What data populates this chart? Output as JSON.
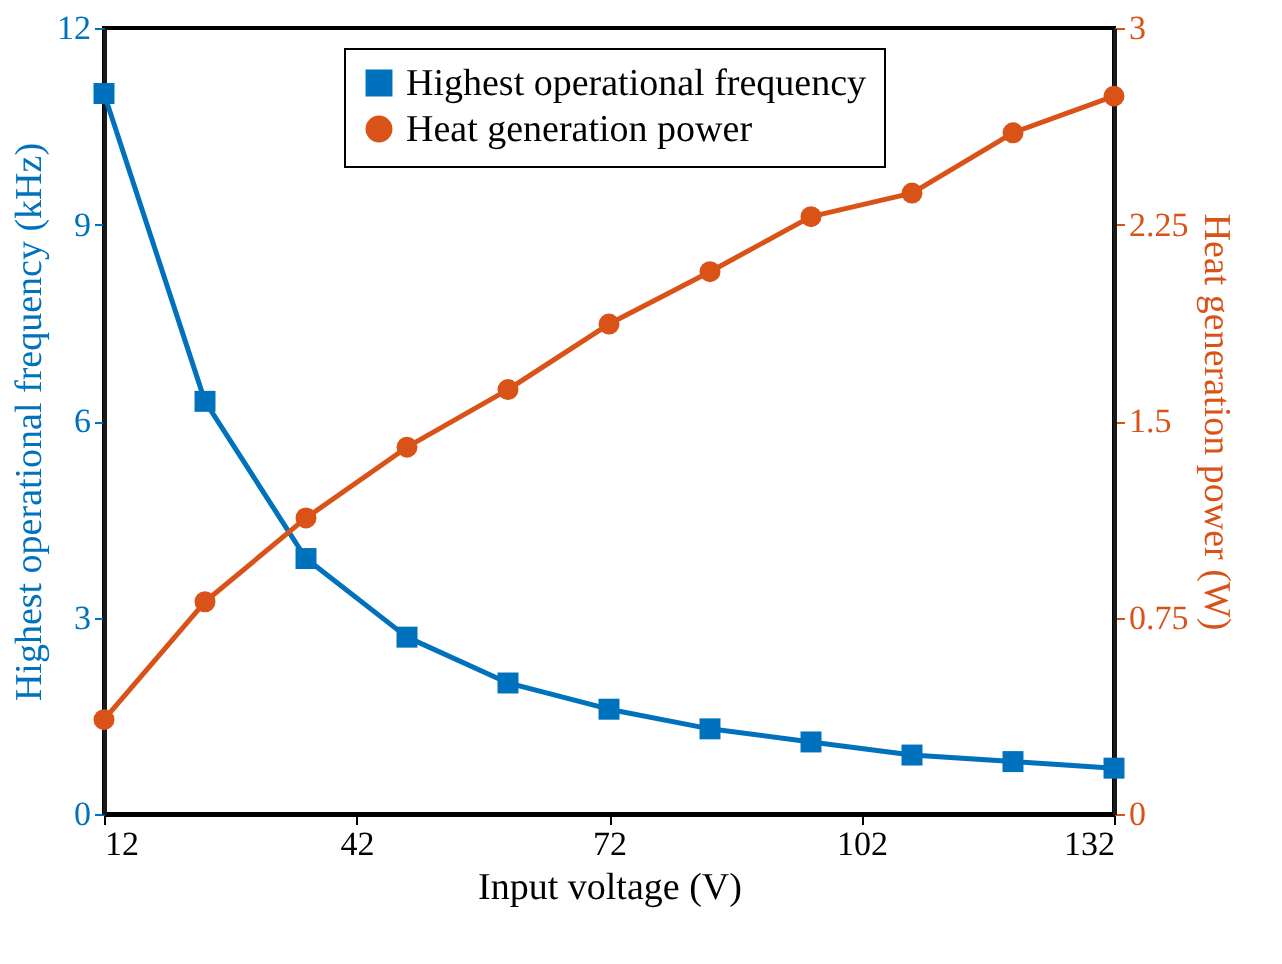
{
  "chart_data": {
    "type": "line",
    "xlabel": "Input voltage (V)",
    "ylabel": "Highest operational frequency (kHz)",
    "y2label": "Heat generation power (W)",
    "x": [
      12,
      24,
      36,
      48,
      60,
      72,
      84,
      96,
      108,
      120,
      132
    ],
    "series": [
      {
        "name": "Highest operational frequency",
        "color": "#0072bd",
        "marker": "square",
        "values": [
          11,
          6.3,
          3.9,
          2.7,
          2.0,
          1.6,
          1.3,
          1.1,
          0.9,
          0.8,
          0.7
        ]
      },
      {
        "name": "Heat generation power",
        "color": "#d95319",
        "marker": "circle",
        "axis": "y2",
        "values": [
          0.36,
          0.81,
          1.13,
          1.4,
          1.62,
          1.87,
          2.07,
          2.28,
          2.37,
          2.6,
          2.74
        ]
      }
    ],
    "xlim": [
      12,
      132
    ],
    "xticks": [
      12,
      42,
      72,
      102,
      132
    ],
    "ylim": [
      0,
      12
    ],
    "yticks": [
      0,
      3,
      6,
      9,
      12
    ],
    "y2lim": [
      0,
      3
    ],
    "y2ticks": [
      0,
      0.75,
      1.5,
      2.25,
      3
    ],
    "legend": "top",
    "grid": false,
    "line_style": "solid"
  }
}
